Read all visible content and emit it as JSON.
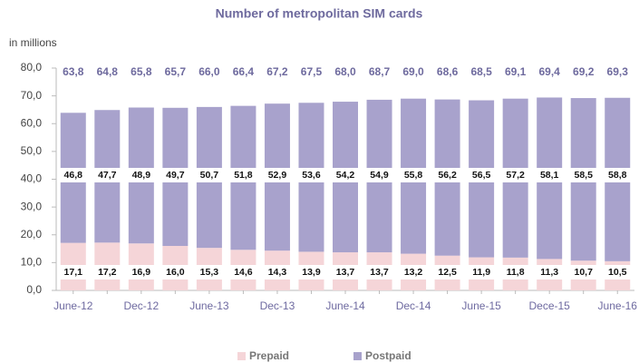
{
  "chart_data": {
    "type": "stacked_bar",
    "title": "Number of metropolitan SIM cards",
    "y_label": "in millions",
    "categories": [
      "June-12",
      null,
      "Dec-12",
      null,
      "June-13",
      null,
      "Dec-13",
      null,
      "June-14",
      null,
      "Dec-14",
      null,
      "June-15",
      null,
      "Dece-15",
      null,
      "June-16"
    ],
    "series": [
      {
        "name": "Prepaid",
        "color": "#f5d5d8",
        "values": [
          17.1,
          17.2,
          16.9,
          16.0,
          15.3,
          14.6,
          14.3,
          13.9,
          13.7,
          13.7,
          13.2,
          12.5,
          11.9,
          11.8,
          11.3,
          10.7,
          10.5
        ],
        "value_labels": [
          "17,1",
          "17,2",
          "16,9",
          "16,0",
          "15,3",
          "14,6",
          "14,3",
          "13,9",
          "13,7",
          "13,7",
          "13,2",
          "12,5",
          "11,9",
          "11,8",
          "11,3",
          "10,7",
          "10,5"
        ]
      },
      {
        "name": "Postpaid",
        "color": "#a8a2cc",
        "values": [
          46.8,
          47.7,
          48.9,
          49.7,
          50.7,
          51.8,
          52.9,
          53.6,
          54.2,
          54.9,
          55.8,
          56.2,
          56.5,
          57.2,
          58.1,
          58.5,
          58.8
        ],
        "value_labels": [
          "46,8",
          "47,7",
          "48,9",
          "49,7",
          "50,7",
          "51,8",
          "52,9",
          "53,6",
          "54,2",
          "54,9",
          "55,8",
          "56,2",
          "56,5",
          "57,2",
          "58,1",
          "58,5",
          "58,8"
        ]
      }
    ],
    "totals": [
      63.8,
      64.8,
      65.8,
      65.7,
      66.0,
      66.4,
      67.2,
      67.5,
      68.0,
      68.7,
      69.0,
      68.6,
      68.5,
      69.1,
      69.4,
      69.2,
      69.3
    ],
    "total_labels": [
      "63,8",
      "64,8",
      "65,8",
      "65,7",
      "66,0",
      "66,4",
      "67,2",
      "67,5",
      "68,0",
      "68,7",
      "69,0",
      "68,6",
      "68,5",
      "69,1",
      "69,4",
      "69,2",
      "69,3"
    ],
    "ylim": [
      0,
      80
    ],
    "yticks": [
      {
        "value": 0,
        "label": "0,0"
      },
      {
        "value": 10,
        "label": "10,0"
      },
      {
        "value": 20,
        "label": "20,0"
      },
      {
        "value": 30,
        "label": "30,0"
      },
      {
        "value": 40,
        "label": "40,0"
      },
      {
        "value": 50,
        "label": "50,0"
      },
      {
        "value": 60,
        "label": "60,0"
      },
      {
        "value": 70,
        "label": "70,0"
      },
      {
        "value": 80,
        "label": "80,0"
      }
    ],
    "legend": "bottom"
  }
}
